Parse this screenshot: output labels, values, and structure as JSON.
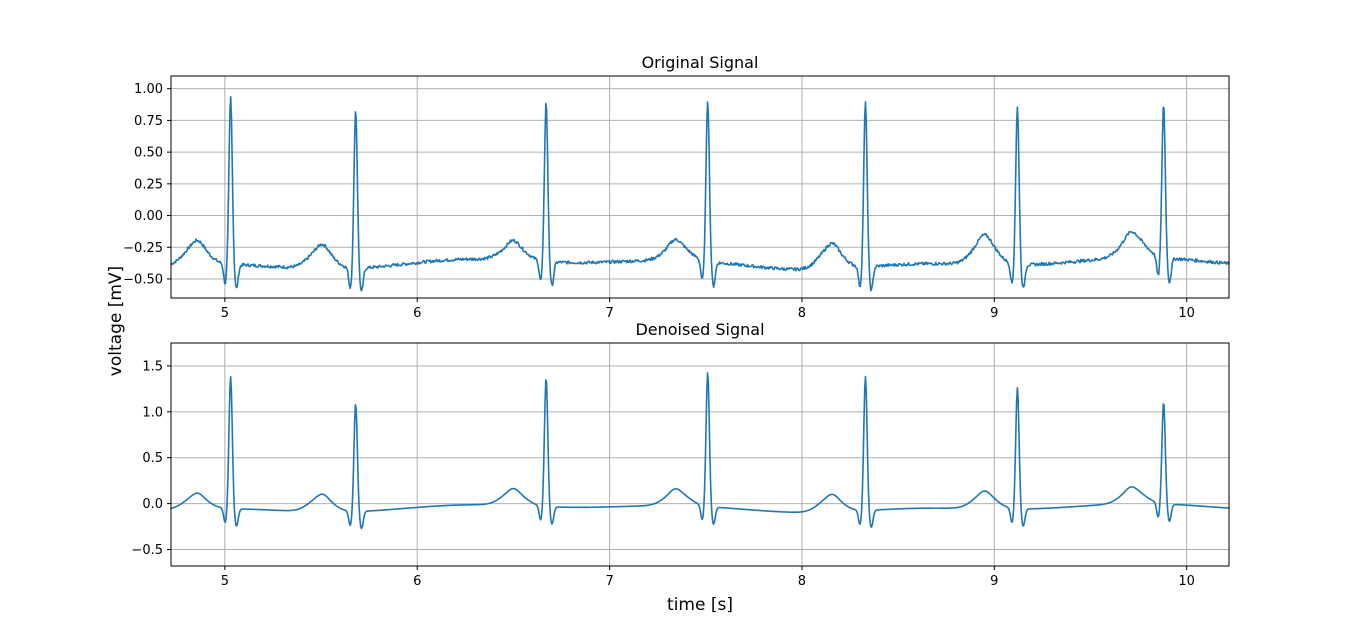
{
  "figure": {
    "ylabel": "voltage [mV]",
    "xlabel": "time [s]"
  },
  "chart_data": [
    {
      "type": "line",
      "title": "Original Signal",
      "xlim": [
        4.72,
        10.22
      ],
      "ylim": [
        -0.65,
        1.1
      ],
      "x_ticks": [
        5,
        6,
        7,
        8,
        9,
        10
      ],
      "x_tick_labels": [
        "5",
        "6",
        "7",
        "8",
        "9",
        "10"
      ],
      "y_ticks": [
        -0.5,
        -0.25,
        0.0,
        0.25,
        0.5,
        0.75,
        1.0
      ],
      "y_tick_labels": [
        "−0.50",
        "−0.25",
        "0.00",
        "0.25",
        "0.50",
        "0.75",
        "1.00"
      ],
      "grid": true,
      "color": "#1f77b4",
      "baseline": -0.38,
      "r_peaks": [
        {
          "t": 5.03,
          "amp": 0.94
        },
        {
          "t": 5.68,
          "amp": 0.87
        },
        {
          "t": 6.67,
          "amp": 0.88
        },
        {
          "t": 7.51,
          "amp": 0.89
        },
        {
          "t": 8.33,
          "amp": 0.92
        },
        {
          "t": 9.12,
          "amp": 0.86
        },
        {
          "t": 9.88,
          "amp": 0.83
        }
      ],
      "t_waves": [
        {
          "t": 4.85,
          "amp": -0.22
        },
        {
          "t": 5.5,
          "amp": -0.22
        },
        {
          "t": 6.5,
          "amp": -0.26
        },
        {
          "t": 7.35,
          "amp": -0.25
        },
        {
          "t": 8.15,
          "amp": -0.21
        },
        {
          "t": 8.95,
          "amp": -0.18
        },
        {
          "t": 9.72,
          "amp": -0.21
        }
      ]
    },
    {
      "type": "line",
      "title": "Denoised Signal",
      "xlim": [
        4.72,
        10.22
      ],
      "ylim": [
        -0.68,
        1.75
      ],
      "x_ticks": [
        5,
        6,
        7,
        8,
        9,
        10
      ],
      "x_tick_labels": [
        "5",
        "6",
        "7",
        "8",
        "9",
        "10"
      ],
      "y_ticks": [
        -0.5,
        0.0,
        0.5,
        1.0,
        1.5
      ],
      "y_tick_labels": [
        "−0.5",
        "0.0",
        "0.5",
        "1.0",
        "1.5"
      ],
      "grid": true,
      "color": "#1f77b4",
      "baseline": -0.05,
      "r_peaks": [
        {
          "t": 5.03,
          "amp": 1.39
        },
        {
          "t": 5.68,
          "amp": 1.13
        },
        {
          "t": 6.67,
          "amp": 1.35
        },
        {
          "t": 7.51,
          "amp": 1.41
        },
        {
          "t": 8.33,
          "amp": 1.41
        },
        {
          "t": 9.12,
          "amp": 1.27
        },
        {
          "t": 9.88,
          "amp": 1.06
        }
      ],
      "t_waves": [
        {
          "t": 4.85,
          "amp": 0.09
        },
        {
          "t": 5.5,
          "amp": 0.11
        },
        {
          "t": 6.5,
          "amp": 0.1
        },
        {
          "t": 7.35,
          "amp": 0.1
        },
        {
          "t": 8.15,
          "amp": 0.11
        },
        {
          "t": 8.95,
          "amp": 0.11
        },
        {
          "t": 9.72,
          "amp": 0.1
        }
      ]
    }
  ]
}
